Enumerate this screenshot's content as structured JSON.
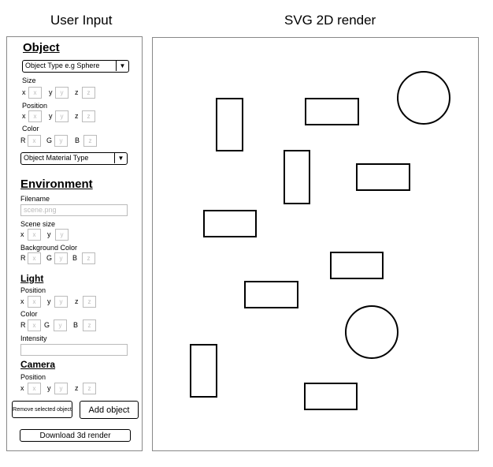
{
  "headings": {
    "left": "User Input",
    "right": "SVG 2D render"
  },
  "object": {
    "title": "Object",
    "type_select": "Object Type e.g Sphere",
    "size_label": "Size",
    "position_label": "Position",
    "color_label": "Color",
    "material_select": "Object Material Type"
  },
  "axes": {
    "x": "x",
    "y": "y",
    "z": "z",
    "r": "R",
    "g": "G",
    "b": "B"
  },
  "environment": {
    "title": "Environment",
    "filename_label": "Filename",
    "filename_placeholder": "scene.png",
    "scene_size_label": "Scene size",
    "bg_color_label": "Background Color"
  },
  "light": {
    "title": "Light",
    "position_label": "Position",
    "color_label": "Color",
    "intensity_label": "Intensity"
  },
  "camera": {
    "title": "Camera",
    "position_label": "Position"
  },
  "buttons": {
    "remove": "Remove selected object",
    "add": "Add object",
    "download": "Download 3d render"
  },
  "icons": {
    "dropdown": "▼"
  }
}
